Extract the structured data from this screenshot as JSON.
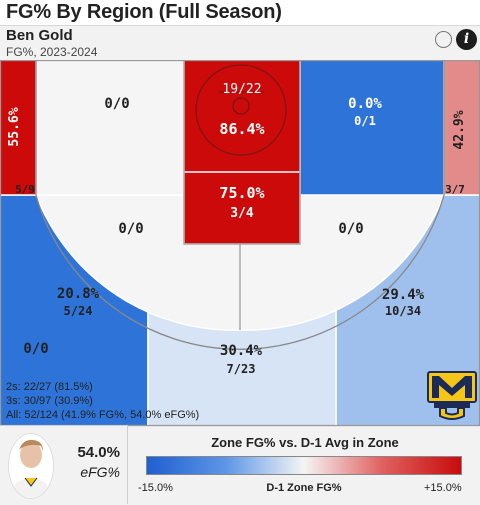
{
  "header": {
    "title": "FG% By Region (Full Season)"
  },
  "player": {
    "name": "Ben Gold",
    "subtitle": "FG%, 2023-2024",
    "efg_value": "54.0%",
    "efg_label": "eFG%"
  },
  "icons": {
    "toggle": "circle-toggle-icon",
    "info": "info-icon",
    "logo": "marquette-logo"
  },
  "summary": {
    "twos": "2s: 22/27 (81.5%)",
    "threes": "3s: 30/97 (30.9%)",
    "all": "All: 52/124 (41.9% FG%, 54.0% eFG%)"
  },
  "legend": {
    "title": "Zone FG% vs. D-1 Avg in Zone",
    "min_label": "-15.0%",
    "max_label": "+15.0%",
    "axis_label": "D-1 Zone FG%"
  },
  "colors": {
    "hot": "#cc0a0a",
    "med_hot": "#e38b8b",
    "cold": "#2e74d8",
    "med_cold": "#5f9be6",
    "light_cold": "#9fc0ec",
    "pale_cold": "#d6e4f6",
    "neutral": "#f5f5f5"
  },
  "chart_data": {
    "type": "heatmap",
    "title": "FG% By Region (Full Season)",
    "zones": [
      {
        "zone": "left corner three",
        "pct_label": "55.6%",
        "made": 5,
        "attempts": 9,
        "fraction": "5/9",
        "color": "#cc0a0a"
      },
      {
        "zone": "left baseline mid-range",
        "pct_label": "",
        "made": 0,
        "attempts": 0,
        "fraction": "0/0",
        "color": "#f5f5f5"
      },
      {
        "zone": "restricted area",
        "pct_label": "86.4%",
        "made": 19,
        "attempts": 22,
        "fraction": "19/22",
        "color": "#cc0a0a"
      },
      {
        "zone": "right baseline mid-range",
        "pct_label": "0.0%",
        "made": 0,
        "attempts": 1,
        "fraction": "0/1",
        "color": "#2e74d8"
      },
      {
        "zone": "right corner three",
        "pct_label": "42.9%",
        "made": 3,
        "attempts": 7,
        "fraction": "3/7",
        "color": "#e38b8b"
      },
      {
        "zone": "paint (non-restricted)",
        "pct_label": "75.0%",
        "made": 3,
        "attempts": 4,
        "fraction": "3/4",
        "color": "#cc0a0a"
      },
      {
        "zone": "left elbow mid-range",
        "pct_label": "",
        "made": 0,
        "attempts": 0,
        "fraction": "0/0",
        "color": "#f5f5f5"
      },
      {
        "zone": "right elbow mid-range",
        "pct_label": "",
        "made": 0,
        "attempts": 0,
        "fraction": "0/0",
        "color": "#f5f5f5"
      },
      {
        "zone": "left wing three",
        "pct_label": "20.8%",
        "made": 5,
        "attempts": 24,
        "fraction": "5/24",
        "color": "#2e74d8"
      },
      {
        "zone": "top of key three",
        "pct_label": "30.4%",
        "made": 7,
        "attempts": 23,
        "fraction": "7/23",
        "color": "#d6e4f6"
      },
      {
        "zone": "right wing three",
        "pct_label": "29.4%",
        "made": 10,
        "attempts": 34,
        "fraction": "10/34",
        "color": "#9fc0ec"
      },
      {
        "zone": "backcourt",
        "pct_label": "",
        "made": 0,
        "attempts": 0,
        "fraction": "0/0",
        "color": "#f5f5f5"
      }
    ],
    "legend": {
      "title": "Zone FG% vs. D-1 Avg in Zone",
      "range": [
        -15,
        15
      ],
      "min_label": "-15.0%",
      "max_label": "+15.0%",
      "xlabel": "D-1 Zone FG%"
    }
  }
}
